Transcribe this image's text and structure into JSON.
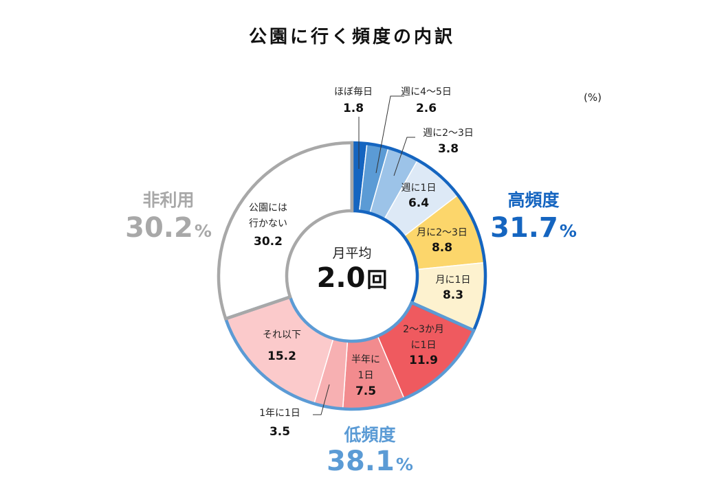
{
  "chart_data": {
    "type": "pie",
    "subtype": "donut",
    "title": "公園に行く頻度の内訳",
    "unit_label": "(%)",
    "center": {
      "label": "月平均",
      "value": "2.0",
      "unit": "回"
    },
    "slices": [
      {
        "label": "ほぼ毎日",
        "value": 1.8,
        "display": "1.8",
        "color": "#1565C0"
      },
      {
        "label": "週に4〜5日",
        "value": 2.6,
        "display": "2.6",
        "color": "#5B9BD5"
      },
      {
        "label": "週に2〜3日",
        "value": 3.8,
        "display": "3.8",
        "color": "#9CC3E8"
      },
      {
        "label": "週に1日",
        "value": 6.4,
        "display": "6.4",
        "color": "#DDE9F6"
      },
      {
        "label": "月に2〜3日",
        "value": 8.8,
        "display": "8.8",
        "color": "#FCD66B"
      },
      {
        "label": "月に1日",
        "value": 8.3,
        "display": "8.3",
        "color": "#FDF2CF"
      },
      {
        "label": "2〜3か月に1日",
        "value": 11.9,
        "display": "11.9",
        "color": "#EF5A5F"
      },
      {
        "label": "半年に1日",
        "value": 7.5,
        "display": "7.5",
        "color": "#F28B8E"
      },
      {
        "label": "1年に1日",
        "value": 3.5,
        "display": "3.5",
        "color": "#F7B0B2"
      },
      {
        "label": "それ以下",
        "value": 15.2,
        "display": "15.2",
        "color": "#FBCACB"
      },
      {
        "label": "公園には行かない",
        "value": 30.2,
        "display": "30.2",
        "color": "#FFFFFF"
      }
    ],
    "groups": [
      {
        "name": "高頻度",
        "value": "31.7",
        "pct": "%",
        "color": "#1565C0",
        "from": 0,
        "to": 5
      },
      {
        "name": "低頻度",
        "value": "38.1",
        "pct": "%",
        "color": "#5B9BD5",
        "from": 6,
        "to": 9
      },
      {
        "name": "非利用",
        "value": "30.2",
        "pct": "%",
        "color": "#A8A8A8",
        "from": 10,
        "to": 10
      }
    ]
  }
}
